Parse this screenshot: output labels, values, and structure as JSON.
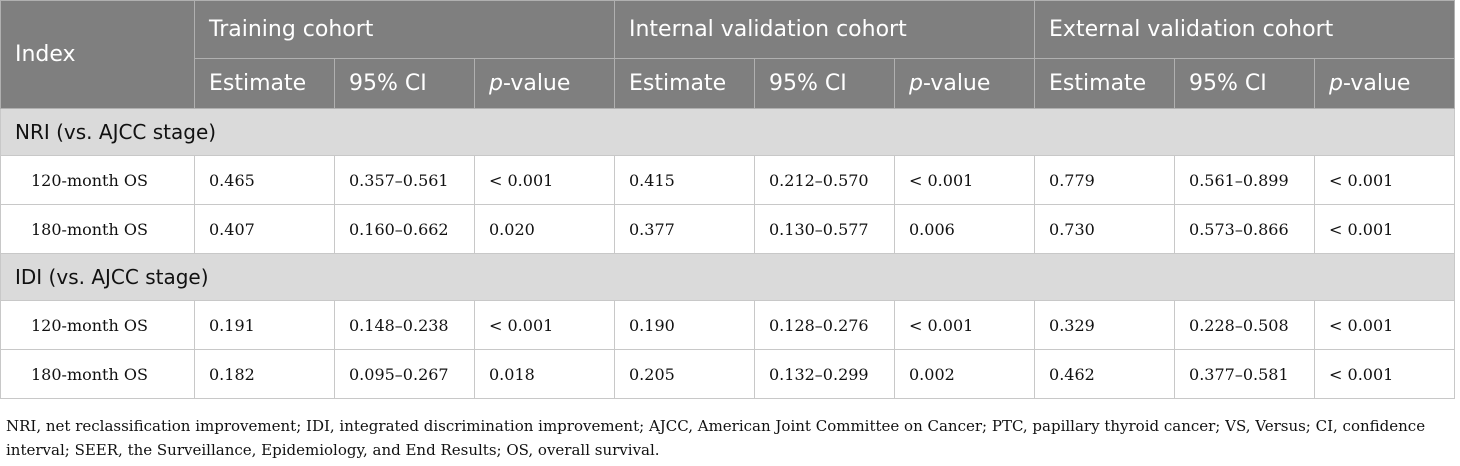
{
  "table": {
    "header": {
      "index": "Index",
      "groups": [
        "Training cohort",
        "Internal validation cohort",
        "External validation cohort"
      ],
      "sub": {
        "estimate": "Estimate",
        "ci": "95% CI",
        "p_prefix": "p",
        "p_suffix": "-value"
      }
    },
    "sections": [
      {
        "title": "NRI (vs. AJCC stage)",
        "rows": [
          {
            "label": "120-month OS",
            "cells": [
              "0.465",
              "0.357–0.561",
              "< 0.001",
              "0.415",
              "0.212–0.570",
              "< 0.001",
              "0.779",
              "0.561–0.899",
              "< 0.001"
            ]
          },
          {
            "label": "180-month OS",
            "cells": [
              "0.407",
              "0.160–0.662",
              "0.020",
              "0.377",
              "0.130–0.577",
              "0.006",
              "0.730",
              "0.573–0.866",
              "< 0.001"
            ]
          }
        ]
      },
      {
        "title": "IDI (vs. AJCC stage)",
        "rows": [
          {
            "label": "120-month OS",
            "cells": [
              "0.191",
              "0.148–0.238",
              "< 0.001",
              "0.190",
              "0.128–0.276",
              "< 0.001",
              "0.329",
              "0.228–0.508",
              "< 0.001"
            ]
          },
          {
            "label": "180-month OS",
            "cells": [
              "0.182",
              "0.095–0.267",
              "0.018",
              "0.205",
              "0.132–0.299",
              "0.002",
              "0.462",
              "0.377–0.581",
              "< 0.001"
            ]
          }
        ]
      }
    ]
  },
  "footnote": "NRI, net reclassification improvement; IDI, integrated discrimination improvement; AJCC, American Joint Committee on Cancer; PTC, papillary thyroid cancer; VS, Versus; CI, confidence interval; SEER, the Surveillance, Epidemiology, and End Results; OS, overall survival."
}
